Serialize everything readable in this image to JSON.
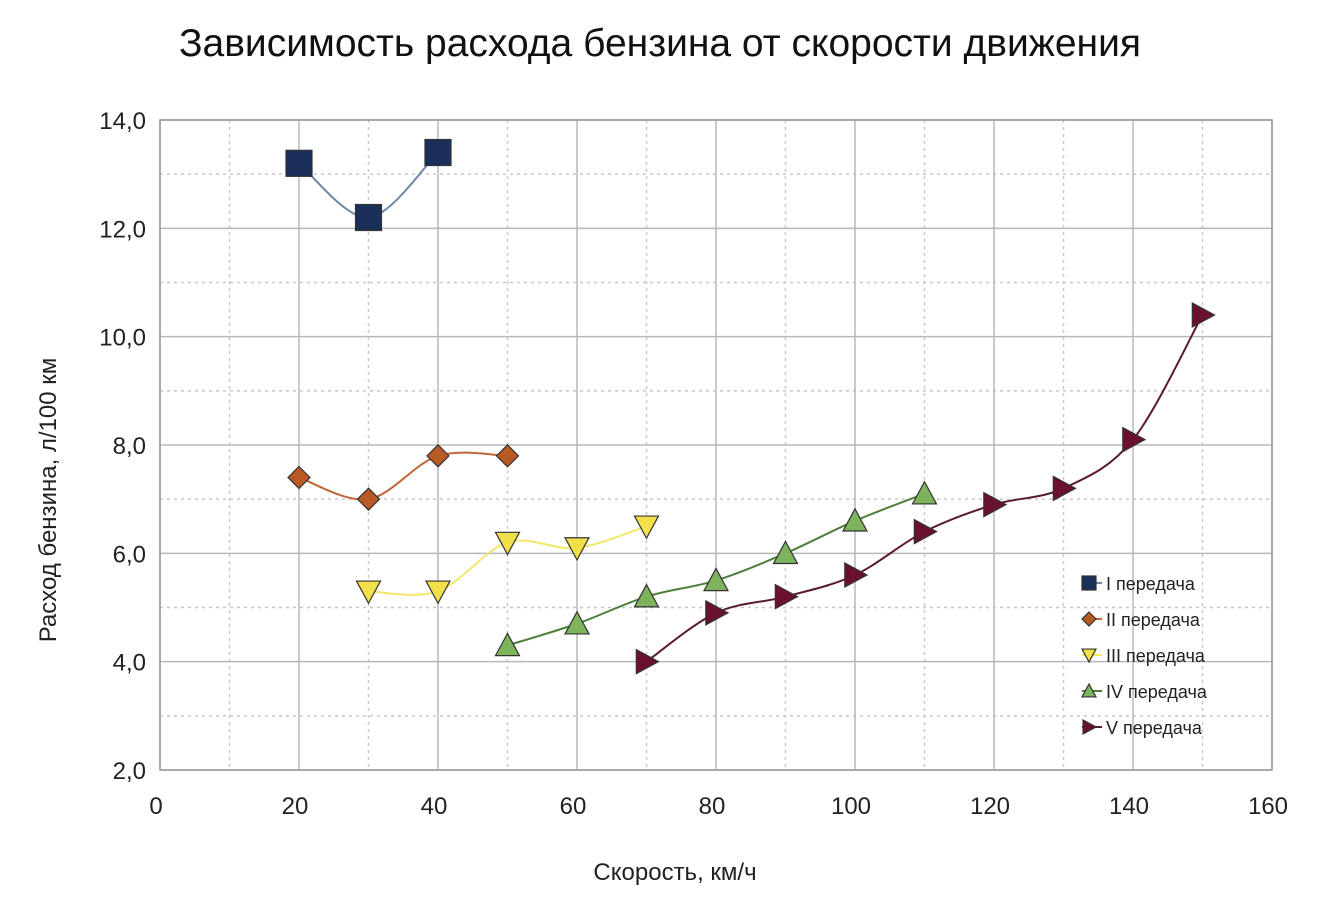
{
  "chart_data": {
    "type": "line",
    "title": "Зависимость расхода бензина от скорости движения",
    "xlabel": "Скорость, км/ч",
    "ylabel": "Расход бензина, л/100 км",
    "xlim": [
      0,
      160
    ],
    "ylim": [
      2,
      14
    ],
    "xticks": [
      0,
      20,
      40,
      60,
      80,
      100,
      120,
      140,
      160
    ],
    "yticks": [
      2,
      4,
      6,
      8,
      10,
      12,
      14
    ],
    "xtick_labels": [
      "0",
      "20",
      "40",
      "60",
      "80",
      "100",
      "120",
      "140",
      "160"
    ],
    "ytick_labels": [
      "2,0",
      "4,0",
      "6,0",
      "8,0",
      "10,0",
      "12,0",
      "14,0"
    ],
    "grid": true,
    "legend_position": "right",
    "series": [
      {
        "name": "I передача",
        "marker": "square",
        "color": "#1a2f5a",
        "line_color": "#6f86a6",
        "x": [
          20,
          30,
          40
        ],
        "y": [
          13.2,
          12.2,
          13.4
        ]
      },
      {
        "name": "II  передача",
        "marker": "diamond",
        "color": "#b85a26",
        "line_color": "#c0673a",
        "x": [
          20,
          30,
          40,
          50
        ],
        "y": [
          7.4,
          7.0,
          7.8,
          7.8
        ]
      },
      {
        "name": "III передача",
        "marker": "triangle-down",
        "color": "#f2e04a",
        "line_color": "#f3e76e",
        "x": [
          30,
          40,
          50,
          60,
          70
        ],
        "y": [
          5.3,
          5.3,
          6.2,
          6.1,
          6.5
        ]
      },
      {
        "name": "IV передача",
        "marker": "triangle-up",
        "color": "#7cb35b",
        "line_color": "#4f7f3a",
        "x": [
          50,
          60,
          70,
          80,
          90,
          100,
          110
        ],
        "y": [
          4.3,
          4.7,
          5.2,
          5.5,
          6.0,
          6.6,
          7.1
        ]
      },
      {
        "name": "V передача",
        "marker": "triangle-right",
        "color": "#6a1030",
        "line_color": "#5a1a33",
        "x": [
          70,
          80,
          90,
          100,
          110,
          120,
          130,
          140,
          150
        ],
        "y": [
          4.0,
          4.9,
          5.2,
          5.6,
          6.4,
          6.9,
          7.2,
          8.1,
          10.4
        ]
      }
    ]
  }
}
